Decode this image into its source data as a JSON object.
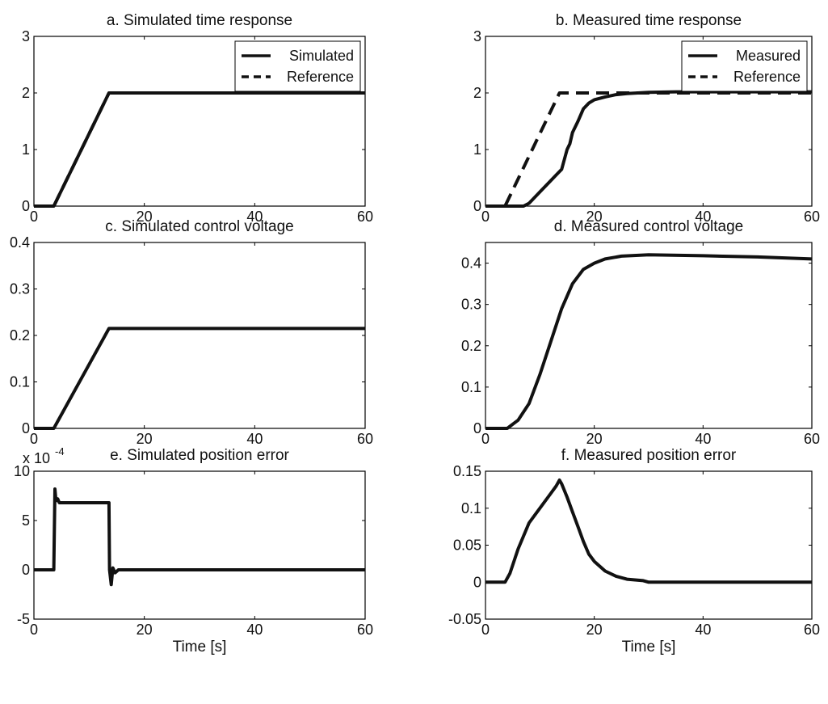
{
  "chart_data": [
    {
      "id": "a",
      "type": "line",
      "title": "a. Simulated time response",
      "xlabel": "",
      "xlim": [
        0,
        60
      ],
      "ylim": [
        0,
        3
      ],
      "xticks": [
        0,
        20,
        40,
        60
      ],
      "yticks": [
        0,
        1,
        2,
        3
      ],
      "ytick_labels": [
        "0",
        "1",
        "2",
        "3"
      ],
      "legend": "top-right",
      "series": [
        {
          "name": "Simulated",
          "style": "solid",
          "x": [
            0,
            3.6,
            13.6,
            60
          ],
          "y": [
            0,
            0,
            2,
            2
          ]
        },
        {
          "name": "Reference",
          "style": "dashed",
          "x": [
            0,
            3.6,
            13.6,
            60
          ],
          "y": [
            0,
            0,
            2,
            2
          ]
        }
      ]
    },
    {
      "id": "b",
      "type": "line",
      "title": "b. Measured time response",
      "xlabel": "",
      "xlim": [
        0,
        60
      ],
      "ylim": [
        0,
        3
      ],
      "xticks": [
        0,
        20,
        40,
        60
      ],
      "yticks": [
        0,
        1,
        2,
        3
      ],
      "ytick_labels": [
        "0",
        "1",
        "2",
        "3"
      ],
      "legend": "top-right",
      "series": [
        {
          "name": "Measured",
          "style": "solid",
          "x": [
            0,
            7,
            8,
            10,
            12,
            13,
            14,
            15,
            15.5,
            16,
            17,
            18,
            19,
            20,
            22,
            24,
            26,
            28,
            30,
            35,
            40,
            50,
            60
          ],
          "y": [
            0,
            0,
            0.05,
            0.25,
            0.45,
            0.55,
            0.65,
            1.0,
            1.1,
            1.3,
            1.5,
            1.72,
            1.82,
            1.88,
            1.93,
            1.97,
            1.99,
            2.0,
            2.01,
            2.02,
            2.02,
            2.02,
            2.02
          ]
        },
        {
          "name": "Reference",
          "style": "dashed",
          "x": [
            0,
            3.6,
            13.6,
            60
          ],
          "y": [
            0,
            0,
            2,
            2
          ]
        }
      ]
    },
    {
      "id": "c",
      "type": "line",
      "title": "c. Simulated control voltage",
      "xlabel": "",
      "xlim": [
        0,
        60
      ],
      "ylim": [
        0,
        0.4
      ],
      "xticks": [
        0,
        20,
        40,
        60
      ],
      "yticks": [
        0,
        0.1,
        0.2,
        0.3,
        0.4
      ],
      "ytick_labels": [
        "0",
        "0.1",
        "0.2",
        "0.3",
        "0.4"
      ],
      "series": [
        {
          "style": "solid",
          "x": [
            0,
            3.6,
            13.6,
            60
          ],
          "y": [
            0,
            0,
            0.215,
            0.215
          ]
        }
      ]
    },
    {
      "id": "d",
      "type": "line",
      "title": "d. Measured control voltage",
      "xlabel": "",
      "xlim": [
        0,
        60
      ],
      "ylim": [
        0,
        0.45
      ],
      "xticks": [
        0,
        20,
        40,
        60
      ],
      "yticks": [
        0,
        0.1,
        0.2,
        0.3,
        0.4
      ],
      "ytick_labels": [
        "0",
        "0.1",
        "0.2",
        "0.3",
        "0.4"
      ],
      "series": [
        {
          "style": "solid",
          "x": [
            0,
            4,
            6,
            8,
            10,
            12,
            14,
            16,
            18,
            20,
            22,
            25,
            30,
            40,
            50,
            60
          ],
          "y": [
            0,
            0,
            0.02,
            0.06,
            0.13,
            0.21,
            0.29,
            0.35,
            0.385,
            0.4,
            0.41,
            0.417,
            0.42,
            0.418,
            0.415,
            0.41
          ]
        }
      ]
    },
    {
      "id": "e",
      "type": "line",
      "title": "e. Simulated position error",
      "xlabel": "Time [s]",
      "xlim": [
        0,
        60
      ],
      "ylim": [
        -5,
        10
      ],
      "xticks": [
        0,
        20,
        40,
        60
      ],
      "yticks": [
        -5,
        0,
        5,
        10
      ],
      "ytick_labels": [
        "-5",
        "0",
        "5",
        "10"
      ],
      "y_multiplier": {
        "base": "x 10",
        "exponent": "-4"
      },
      "series": [
        {
          "style": "solid",
          "x": [
            0,
            3.6,
            3.8,
            4.0,
            4.3,
            4.6,
            5.2,
            13.6,
            13.7,
            14.0,
            14.3,
            14.7,
            15.3,
            60
          ],
          "y": [
            0,
            0,
            8.2,
            7.0,
            7.2,
            6.8,
            6.8,
            6.8,
            0,
            -1.5,
            0.2,
            -0.3,
            0,
            0
          ]
        }
      ]
    },
    {
      "id": "f",
      "type": "line",
      "title": "f. Measured position error",
      "xlabel": "Time [s]",
      "xlim": [
        0,
        60
      ],
      "ylim": [
        -0.05,
        0.15
      ],
      "xticks": [
        0,
        20,
        40,
        60
      ],
      "yticks": [
        -0.05,
        0,
        0.05,
        0.1,
        0.15
      ],
      "ytick_labels": [
        "-0.05",
        "0",
        "0.05",
        "0.1",
        "0.15"
      ],
      "series": [
        {
          "style": "solid",
          "x": [
            0,
            3.6,
            4.5,
            6,
            8,
            10,
            12,
            13,
            13.6,
            14,
            15,
            16,
            17,
            18,
            19,
            20,
            22,
            24,
            26,
            29,
            30,
            40,
            50,
            60
          ],
          "y": [
            0,
            0,
            0.012,
            0.045,
            0.08,
            0.1,
            0.12,
            0.13,
            0.138,
            0.133,
            0.115,
            0.095,
            0.075,
            0.055,
            0.038,
            0.028,
            0.015,
            0.008,
            0.004,
            0.002,
            0,
            0,
            0,
            0
          ]
        }
      ]
    }
  ]
}
